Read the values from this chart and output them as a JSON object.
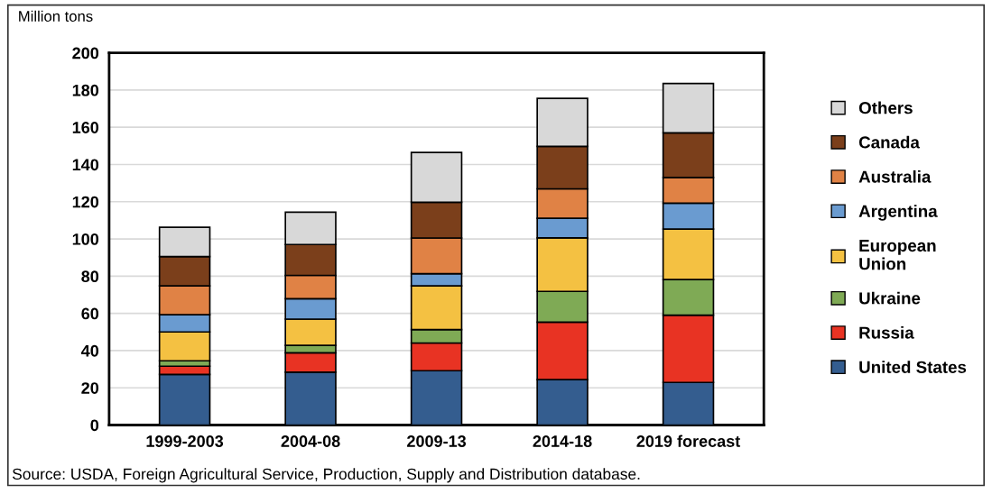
{
  "chart_data": {
    "type": "bar",
    "stacked": true,
    "ylabel": "Million tons",
    "categories": [
      "1999-2003",
      "2004-08",
      "2009-13",
      "2014-18",
      "2019 forecast"
    ],
    "series": [
      {
        "name": "United States",
        "color": "#345d8f",
        "values": [
          27.2,
          28.4,
          29.2,
          24.4,
          22.9
        ]
      },
      {
        "name": "Russia",
        "color": "#e83323",
        "values": [
          4.4,
          10.4,
          14.9,
          30.9,
          36.1
        ]
      },
      {
        "name": "Ukraine",
        "color": "#7faa55",
        "values": [
          2.9,
          4.0,
          7.2,
          16.5,
          19.2
        ]
      },
      {
        "name": "European\nUnion",
        "color": "#f4c142",
        "values": [
          15.5,
          14.1,
          23.5,
          28.8,
          27.1
        ]
      },
      {
        "name": "Argentina",
        "color": "#6a9bd0",
        "values": [
          9.3,
          11.0,
          6.5,
          10.5,
          13.9
        ]
      },
      {
        "name": "Australia",
        "color": "#e08245",
        "values": [
          15.5,
          12.5,
          19.2,
          15.8,
          13.8
        ]
      },
      {
        "name": "Canada",
        "color": "#7b3f1b",
        "values": [
          15.7,
          16.6,
          19.2,
          22.8,
          24.0
        ]
      },
      {
        "name": "Others",
        "color": "#d8d8d8",
        "values": [
          15.8,
          17.4,
          26.8,
          25.8,
          26.5
        ]
      }
    ],
    "ylim": [
      0,
      200
    ],
    "yticks": [
      0,
      20,
      40,
      60,
      80,
      100,
      120,
      140,
      160,
      180,
      200
    ],
    "grid": "y",
    "legend": "right",
    "annotations": [
      "Source: USDA, Foreign Agricultural Service, Production, Supply and Distribution database."
    ]
  }
}
